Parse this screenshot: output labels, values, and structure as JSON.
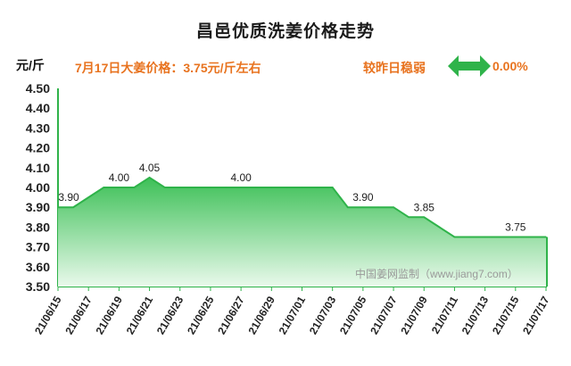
{
  "header": {
    "title": "昌邑优质洗姜价格走势",
    "unit": "元/斤",
    "price_note": "7月17日大姜价格：3.75元/斤左右",
    "compare_label": "较昨日稳弱",
    "change": "0.00%",
    "arrow_icon": "left-right-arrow-icon",
    "accent_color": "#e8731f",
    "arrow_color": "#2fb34a"
  },
  "chart_data": {
    "type": "area",
    "title": "昌邑优质洗姜价格走势",
    "ylabel": "元/斤",
    "ylim": [
      3.5,
      4.5
    ],
    "yticks": [
      "4.50",
      "4.40",
      "4.30",
      "4.20",
      "4.10",
      "4.00",
      "3.90",
      "3.80",
      "3.70",
      "3.60",
      "3.50"
    ],
    "x_tick_labels": [
      "21/06/15",
      "21/06/17",
      "21/06/19",
      "21/06/21",
      "21/06/23",
      "21/06/25",
      "21/06/27",
      "21/06/29",
      "21/07/01",
      "21/07/03",
      "21/07/05",
      "21/07/07",
      "21/07/09",
      "21/07/11",
      "21/07/13",
      "21/07/15",
      "21/07/17"
    ],
    "x": [
      "21/06/15",
      "21/06/16",
      "21/06/17",
      "21/06/18",
      "21/06/19",
      "21/06/20",
      "21/06/21",
      "21/06/22",
      "21/06/23",
      "21/06/24",
      "21/06/25",
      "21/06/26",
      "21/06/27",
      "21/06/28",
      "21/06/29",
      "21/06/30",
      "21/07/01",
      "21/07/02",
      "21/07/03",
      "21/07/04",
      "21/07/05",
      "21/07/06",
      "21/07/07",
      "21/07/08",
      "21/07/09",
      "21/07/10",
      "21/07/11",
      "21/07/12",
      "21/07/13",
      "21/07/14",
      "21/07/15",
      "21/07/16",
      "21/07/17"
    ],
    "values": [
      3.9,
      3.9,
      3.95,
      4.0,
      4.0,
      4.0,
      4.05,
      4.0,
      4.0,
      4.0,
      4.0,
      4.0,
      4.0,
      4.0,
      4.0,
      4.0,
      4.0,
      4.0,
      4.0,
      3.9,
      3.9,
      3.9,
      3.9,
      3.85,
      3.85,
      3.8,
      3.75,
      3.75,
      3.75,
      3.75,
      3.75,
      3.75,
      3.75
    ],
    "data_labels": [
      {
        "x": "21/06/15",
        "text": "3.90"
      },
      {
        "x": "21/06/19",
        "text": "4.00"
      },
      {
        "x": "21/06/21",
        "text": "4.05"
      },
      {
        "x": "21/06/27",
        "text": "4.00"
      },
      {
        "x": "21/07/05",
        "text": "3.90"
      },
      {
        "x": "21/07/09",
        "text": "3.85"
      },
      {
        "x": "21/07/15",
        "text": "3.75"
      }
    ],
    "line_color": "#2fb34a",
    "fill_top_color": "#3dc057",
    "fill_bottom_color": "#e9f9eb",
    "grid": false,
    "watermark": "中国姜网监制（www.jiang7.com）"
  }
}
